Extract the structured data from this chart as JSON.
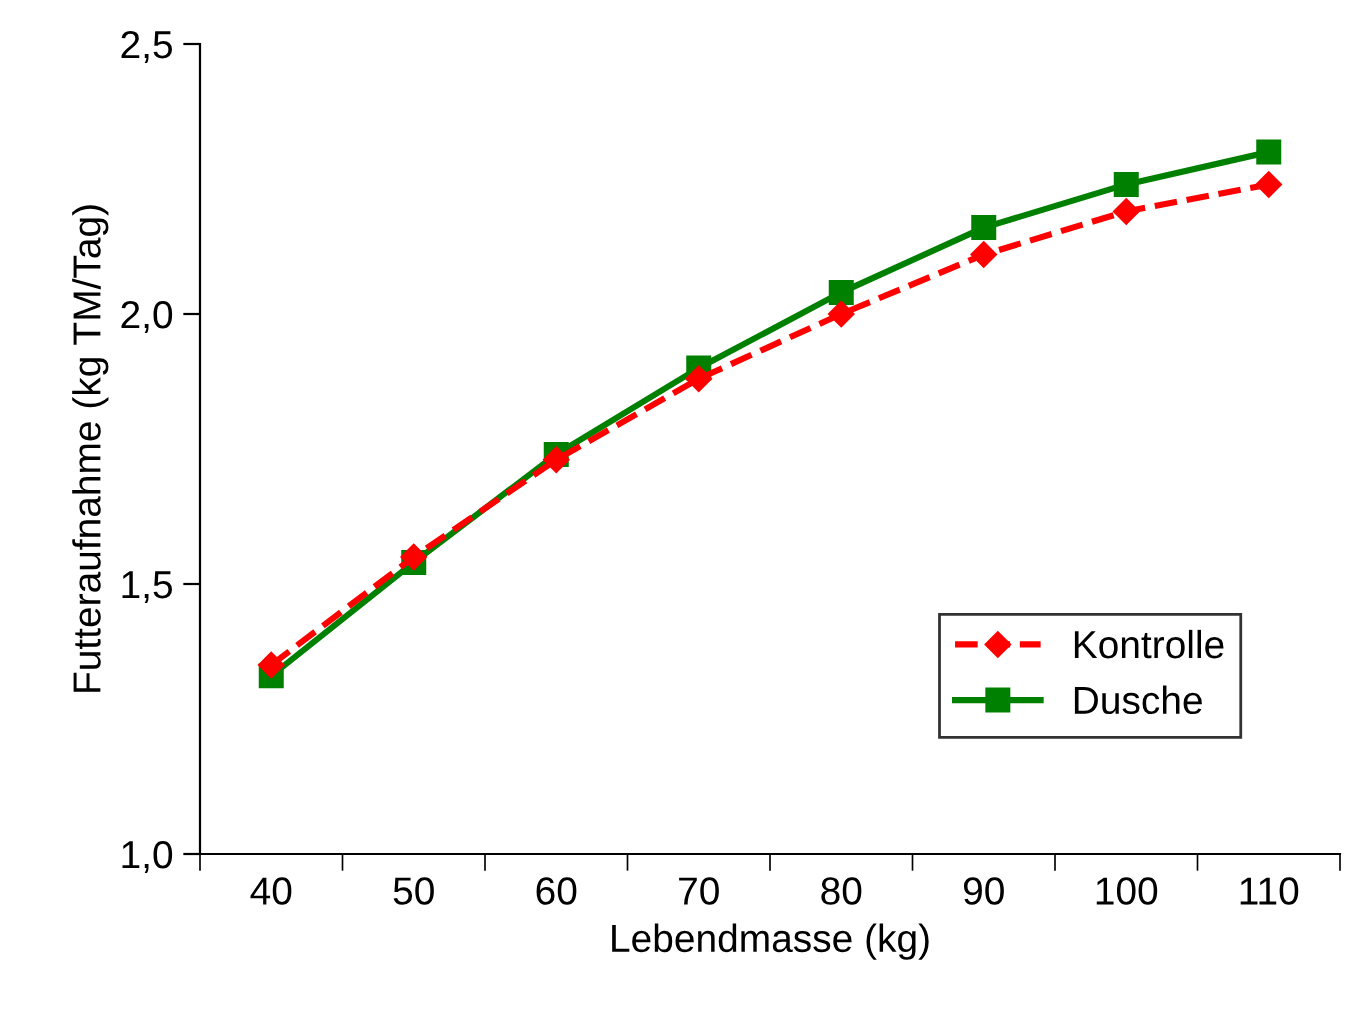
{
  "chart_data": {
    "type": "line",
    "xlabel": "Lebendmasse (kg)",
    "ylabel": "Futteraufnahme (kg TM/Tag)",
    "categories": [
      "40",
      "50",
      "60",
      "70",
      "80",
      "90",
      "100",
      "110"
    ],
    "series": [
      {
        "name": "Kontrolle",
        "color": "#ff0000",
        "line_style": "dashed",
        "marker": "diamond",
        "values": [
          1.35,
          1.55,
          1.73,
          1.88,
          2.0,
          2.11,
          2.19,
          2.24
        ]
      },
      {
        "name": "Dusche",
        "color": "#008000",
        "line_style": "solid",
        "marker": "square",
        "values": [
          1.33,
          1.54,
          1.74,
          1.9,
          2.04,
          2.16,
          2.24,
          2.3
        ]
      }
    ],
    "ylim": [
      1.0,
      2.5
    ],
    "yticks": [
      {
        "value": 1.0,
        "label": "1,0"
      },
      {
        "value": 1.5,
        "label": "1,5"
      },
      {
        "value": 2.0,
        "label": "2,0"
      },
      {
        "value": 2.5,
        "label": "2,5"
      }
    ],
    "grid": false,
    "legend": "lower right"
  }
}
